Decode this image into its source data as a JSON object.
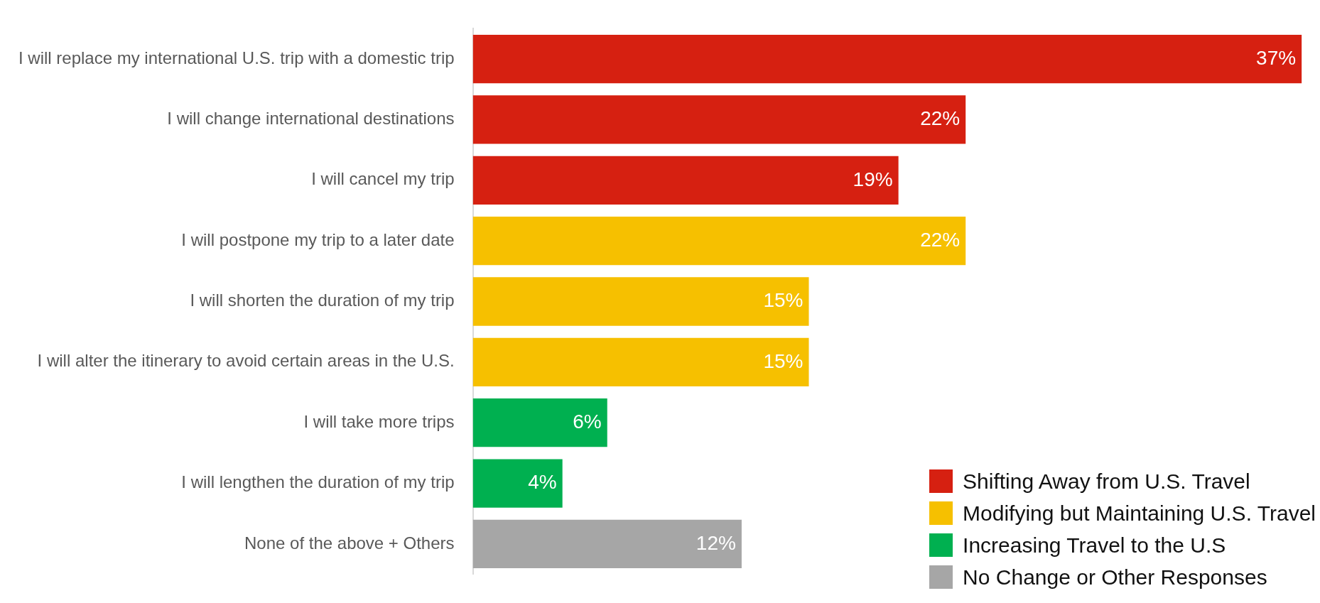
{
  "chart_data": {
    "type": "bar",
    "orientation": "horizontal",
    "stacked": true,
    "legend": "bottom right",
    "categories": [
      "I will replace my international U.S. trip with a domestic trip",
      "I will change international destinations",
      "I will cancel my trip",
      "I will postpone my trip to a later date",
      "I will shorten the duration of my trip",
      "I will alter the itinerary to avoid certain areas in the U.S.",
      "I will take more trips",
      "I will lengthen the duration of my trip",
      "None of the above + Others"
    ],
    "series": [
      {
        "name": "Shifting Away from U.S. Travel",
        "color": "#d62011",
        "values": [
          37,
          22,
          19,
          null,
          null,
          null,
          null,
          null,
          null
        ],
        "value_labels": [
          "37%",
          "22%",
          "19%",
          null,
          null,
          null,
          null,
          null,
          null
        ]
      },
      {
        "name": "Modifying but Maintaining U.S. Travel",
        "color": "#f6c000",
        "values": [
          null,
          null,
          null,
          22,
          15,
          15,
          null,
          null,
          null
        ],
        "value_labels": [
          null,
          null,
          null,
          "22%",
          "15%",
          "15%",
          null,
          null,
          null
        ]
      },
      {
        "name": "Increasing Travel to the U.S",
        "color": "#00b050",
        "values": [
          null,
          null,
          null,
          null,
          null,
          null,
          6,
          4,
          null
        ],
        "value_labels": [
          null,
          null,
          null,
          null,
          null,
          null,
          "6%",
          "4%",
          null
        ]
      },
      {
        "name": "No Change or Other Responses",
        "color": "#a6a6a6",
        "values": [
          null,
          null,
          null,
          null,
          null,
          null,
          null,
          null,
          12
        ],
        "value_labels": [
          null,
          null,
          null,
          null,
          null,
          null,
          null,
          null,
          "12%"
        ]
      }
    ]
  }
}
